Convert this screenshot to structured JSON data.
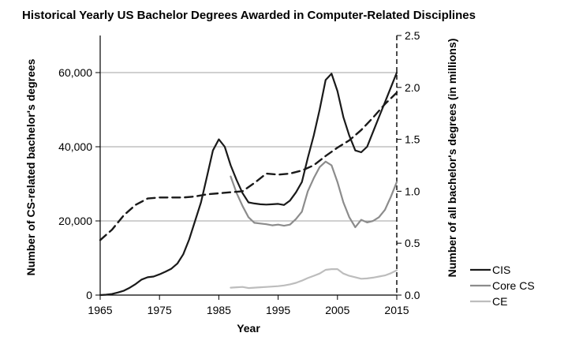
{
  "chart_data": {
    "type": "line",
    "title": "Historical Yearly US Bachelor Degrees Awarded in Computer-Related Disciplines",
    "xlabel": "Year",
    "ylabel": "Number of CS-related bachelor's  degrees",
    "y2label": "Number of all bachelor's degrees (in millions)",
    "xlim": [
      1965,
      2015
    ],
    "ylim": [
      0,
      70000
    ],
    "y2lim": [
      0,
      2.5
    ],
    "x_ticks": [
      "1965",
      "1975",
      "1985",
      "1995",
      "2005",
      "2015"
    ],
    "y_ticks": [
      "0",
      "20,000",
      "40,000",
      "60,000"
    ],
    "y2_ticks": [
      "0.0",
      "0.5",
      "1.0",
      "1.5",
      "2.0",
      "2.5"
    ],
    "grid": "horizontal",
    "legend_position": "bottom-right",
    "series": [
      {
        "name": "CIS",
        "axis": "left",
        "color": "#1a1a1a",
        "style": "solid",
        "x": [
          1965,
          1966,
          1967,
          1968,
          1969,
          1970,
          1971,
          1972,
          1973,
          1974,
          1975,
          1976,
          1977,
          1978,
          1979,
          1980,
          1981,
          1982,
          1983,
          1984,
          1985,
          1986,
          1987,
          1988,
          1989,
          1990,
          1991,
          1992,
          1993,
          1994,
          1995,
          1996,
          1997,
          1998,
          1999,
          2000,
          2001,
          2002,
          2003,
          2004,
          2005,
          2006,
          2007,
          2008,
          2009,
          2010,
          2011,
          2012,
          2013,
          2014,
          2015
        ],
        "y": [
          0,
          100,
          300,
          700,
          1200,
          2000,
          3000,
          4200,
          4800,
          5000,
          5600,
          6300,
          7100,
          8500,
          11000,
          15000,
          20000,
          25000,
          32000,
          39000,
          42000,
          40000,
          35000,
          31000,
          27500,
          25000,
          24700,
          24500,
          24400,
          24500,
          24600,
          24300,
          25500,
          27700,
          30500,
          37000,
          43000,
          50000,
          58000,
          59700,
          55000,
          48000,
          43000,
          39000,
          38500,
          40000,
          44000,
          48000,
          52000,
          56000,
          60000
        ]
      },
      {
        "name": "Core CS",
        "axis": "left",
        "color": "#8c8c8c",
        "style": "solid",
        "x": [
          1987,
          1988,
          1989,
          1990,
          1991,
          1992,
          1993,
          1994,
          1995,
          1996,
          1997,
          1998,
          1999,
          2000,
          2001,
          2002,
          2003,
          2004,
          2005,
          2006,
          2007,
          2008,
          2009,
          2010,
          2011,
          2012,
          2013,
          2014,
          2015
        ],
        "y": [
          32000,
          27500,
          24000,
          21000,
          19500,
          19300,
          19100,
          18800,
          19000,
          18700,
          19000,
          20500,
          22500,
          28000,
          31500,
          34500,
          36000,
          35000,
          30500,
          25000,
          21000,
          18300,
          20300,
          19600,
          20000,
          21000,
          23000,
          26500,
          30500
        ]
      },
      {
        "name": "CE",
        "axis": "left",
        "color": "#bdbdbd",
        "style": "solid",
        "x": [
          1987,
          1988,
          1989,
          1990,
          1991,
          1992,
          1993,
          1994,
          1995,
          1996,
          1997,
          1998,
          1999,
          2000,
          2001,
          2002,
          2003,
          2004,
          2005,
          2006,
          2007,
          2008,
          2009,
          2010,
          2011,
          2012,
          2013,
          2014,
          2015
        ],
        "y": [
          2000,
          2100,
          2200,
          1900,
          2000,
          2100,
          2200,
          2300,
          2400,
          2600,
          2900,
          3300,
          3900,
          4600,
          5200,
          5800,
          6800,
          7000,
          7000,
          5800,
          5200,
          4800,
          4400,
          4500,
          4700,
          5000,
          5300,
          5900,
          6700
        ]
      },
      {
        "name": "",
        "axis": "right",
        "color": "#1a1a1a",
        "style": "dashed",
        "x": [
          1965,
          1967,
          1969,
          1971,
          1973,
          1975,
          1977,
          1979,
          1981,
          1983,
          1985,
          1987,
          1989,
          1991,
          1993,
          1995,
          1997,
          1999,
          2001,
          2003,
          2005,
          2007,
          2009,
          2011,
          2013,
          2015
        ],
        "y": [
          0.53,
          0.63,
          0.77,
          0.87,
          0.93,
          0.94,
          0.94,
          0.94,
          0.95,
          0.97,
          0.98,
          0.99,
          1.0,
          1.08,
          1.17,
          1.16,
          1.17,
          1.2,
          1.25,
          1.34,
          1.42,
          1.49,
          1.59,
          1.71,
          1.84,
          1.95
        ]
      }
    ]
  }
}
